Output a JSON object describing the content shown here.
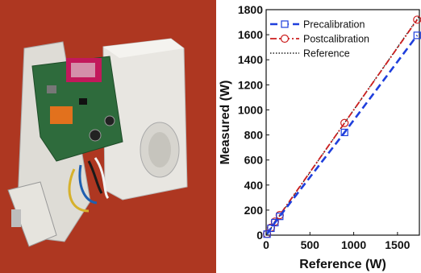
{
  "figure": {
    "photo_alt": "Smart plug device with circuit board opened from its white plastic housing"
  },
  "chart_data": {
    "type": "line",
    "xlabel": "Reference (W)",
    "ylabel": "Measured (W)",
    "xlim": [
      0,
      1750
    ],
    "ylim": [
      0,
      1800
    ],
    "x_ticks": [
      "0",
      "500",
      "1000",
      "1500"
    ],
    "y_ticks": [
      "0",
      "200",
      "400",
      "600",
      "800",
      "1000",
      "1200",
      "1400",
      "1600",
      "1800"
    ],
    "legend_position": "top-left",
    "grid": false,
    "series": [
      {
        "name": "Precalibration",
        "color": "#1f3fdc",
        "style": "dashed",
        "marker": "square",
        "x": [
          10,
          55,
          100,
          155,
          895,
          1725
        ],
        "y": [
          8,
          55,
          100,
          150,
          820,
          1595
        ]
      },
      {
        "name": "Postcalibration",
        "color": "#cc1f1f",
        "style": "dash-dot",
        "marker": "circle",
        "x": [
          10,
          55,
          100,
          155,
          895,
          1725
        ],
        "y": [
          10,
          60,
          108,
          160,
          895,
          1720
        ]
      },
      {
        "name": "Reference",
        "color": "#222222",
        "style": "dotted",
        "marker": "none",
        "x": [
          0,
          1750
        ],
        "y": [
          0,
          1750
        ]
      }
    ]
  }
}
